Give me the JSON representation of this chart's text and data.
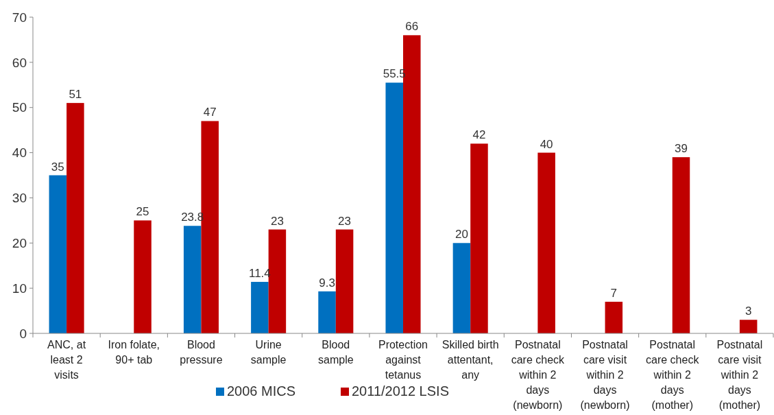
{
  "chart_data": {
    "type": "bar",
    "categories": [
      "ANC, at least 2 visits",
      "Iron folate, 90+ tab",
      "Blood pressure",
      "Urine sample",
      "Blood sample",
      "Protection against tetanus",
      "Skilled birth attentant, any",
      "Postnatal care check within 2 days (newborn)",
      "Postnatal care visit within 2 days (newborn)",
      "Postnatal care check within 2 days (mother)",
      "Postnatal care visit within 2 days (mother)"
    ],
    "series": [
      {
        "name": "2006 MICS",
        "color": "#0070c0",
        "values": [
          35,
          null,
          23.8,
          11.4,
          9.3,
          55.5,
          20,
          null,
          null,
          null,
          null
        ],
        "value_labels": [
          "35",
          null,
          "23.8",
          "11.4",
          "9.3",
          "55.5",
          "20",
          null,
          null,
          null,
          null
        ]
      },
      {
        "name": "2011/2012 LSIS",
        "color": "#c00000",
        "values": [
          51,
          25,
          47,
          23,
          23,
          66,
          42,
          40,
          7,
          39,
          3
        ],
        "value_labels": [
          "51",
          "25",
          "47",
          "23",
          "23",
          "66",
          "42",
          "40",
          "7",
          "39",
          "3"
        ]
      }
    ],
    "ylim": [
      0,
      70
    ],
    "yticks": [
      0,
      10,
      20,
      30,
      40,
      50,
      60,
      70
    ],
    "grid": false,
    "legend": "bottom"
  }
}
